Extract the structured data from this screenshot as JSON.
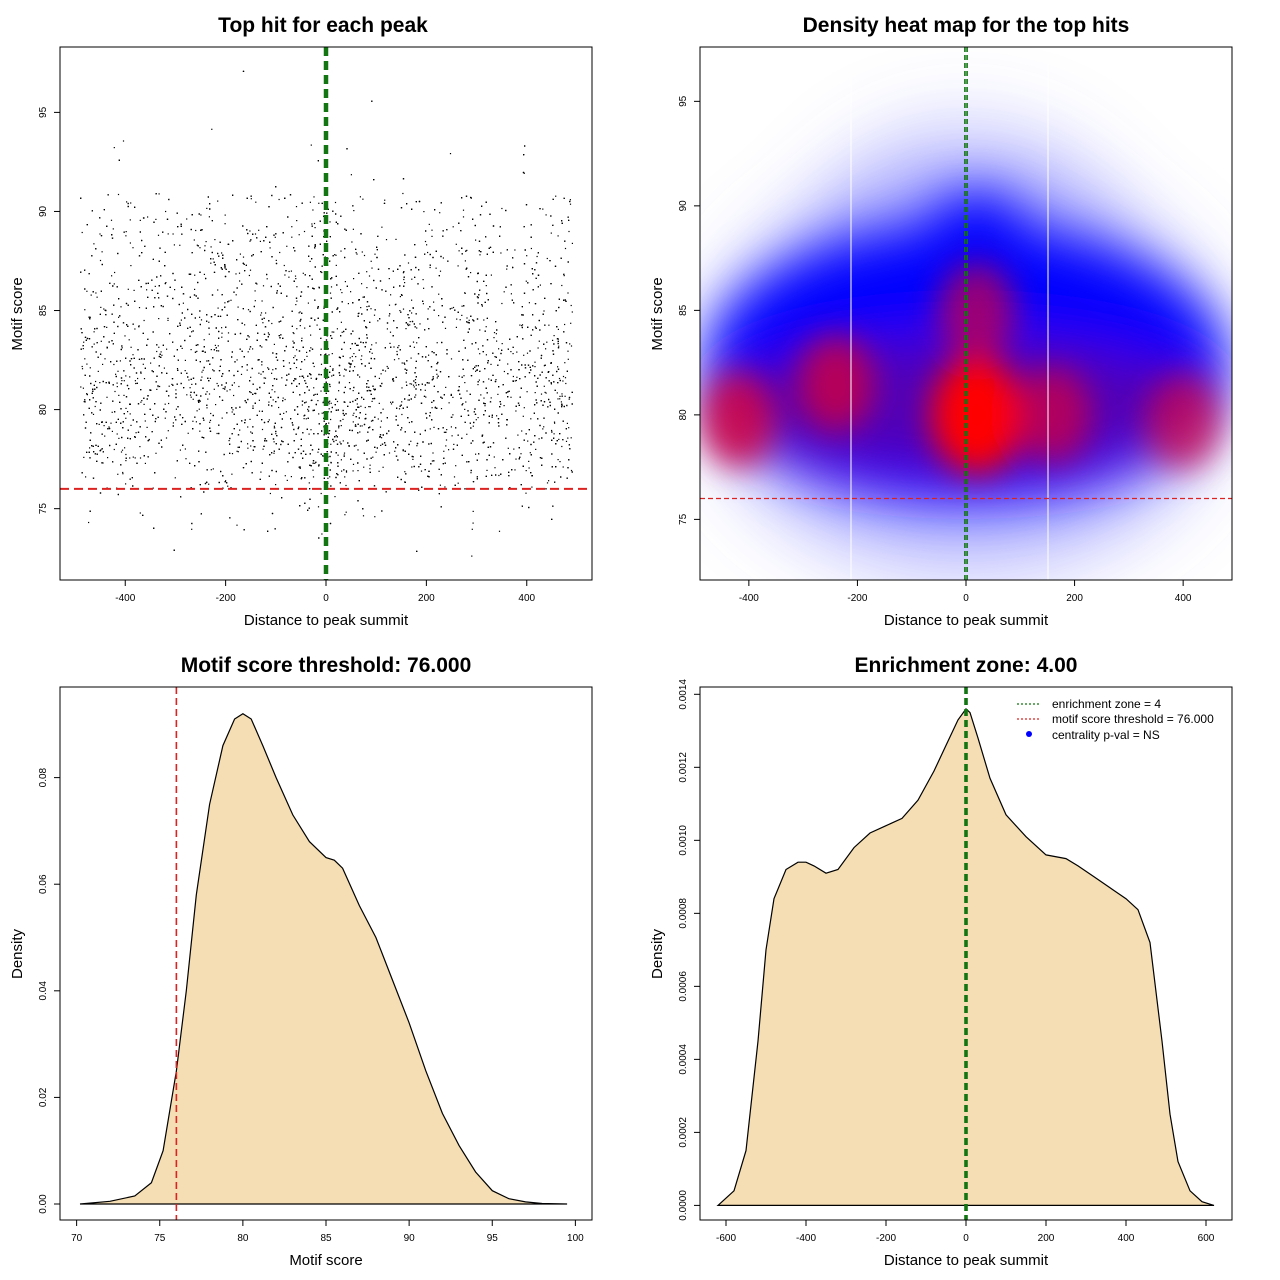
{
  "chart_data": [
    {
      "type": "scatter",
      "title": "Top hit for each peak",
      "xlabel": "Distance to peak summit",
      "ylabel": "Motif score",
      "xlim": [
        -530,
        530
      ],
      "ylim": [
        71.4,
        98.3
      ],
      "xticks": [
        -400,
        -200,
        0,
        200,
        400
      ],
      "yticks": [
        75,
        80,
        85,
        90,
        95
      ],
      "point_count_approx": 6000,
      "point_x_range": [
        -490,
        490
      ],
      "point_y_range": [
        72.2,
        97.4
      ],
      "point_y_mode": 80,
      "threshold_line": {
        "y": 76,
        "color": "#dd2222",
        "style": "dashed"
      },
      "enrichment_lines": {
        "x": [
          -2,
          2
        ],
        "color": "#127512",
        "style": "dashed"
      },
      "grid": false
    },
    {
      "type": "heatmap",
      "title": "Density heat map for the top hits",
      "xlabel": "Distance to peak summit",
      "ylabel": "Motif score",
      "xlim": [
        -490,
        490
      ],
      "ylim": [
        72.1,
        97.6
      ],
      "xticks": [
        -400,
        -200,
        0,
        200,
        400
      ],
      "yticks": [
        75,
        80,
        85,
        90,
        95
      ],
      "colors": {
        "low": "#ffffff",
        "mid": "#0000ff",
        "high": "#ff0000"
      },
      "density_peaks": [
        {
          "x": 20,
          "y": 80,
          "weight": 1.0
        },
        {
          "x": -420,
          "y": 79.8,
          "weight": 0.85
        },
        {
          "x": -240,
          "y": 81.5,
          "weight": 0.8
        },
        {
          "x": 20,
          "y": 85,
          "weight": 0.7
        },
        {
          "x": 160,
          "y": 80,
          "weight": 0.75
        },
        {
          "x": 400,
          "y": 79.7,
          "weight": 0.7
        }
      ],
      "threshold_line": {
        "y": 76,
        "color": "#dd2222",
        "style": "dashed"
      },
      "enrichment_lines": {
        "x": [
          -2,
          2
        ],
        "color": "#127512",
        "style": "dashed"
      },
      "grid": false
    },
    {
      "type": "area",
      "title": "Motif score threshold: 76.000",
      "xlabel": "Motif score",
      "ylabel": "Density",
      "xlim": [
        69,
        101
      ],
      "ylim": [
        -0.003,
        0.097
      ],
      "xticks": [
        70,
        75,
        80,
        85,
        90,
        95,
        100
      ],
      "yticks": [
        0.0,
        0.02,
        0.04,
        0.06,
        0.08
      ],
      "ytick_labels": [
        "0.00",
        "0.02",
        "0.04",
        "0.06",
        "0.08"
      ],
      "fill_color": "#f5deb3",
      "curve": {
        "x": [
          70.2,
          72,
          73.5,
          74.5,
          75.2,
          76,
          76.6,
          77.2,
          78,
          78.8,
          79.5,
          80,
          80.5,
          81.2,
          82,
          83,
          84,
          85,
          85.5,
          86,
          87,
          88,
          89,
          90,
          91,
          92,
          93,
          94,
          95,
          96,
          97,
          98,
          99.5
        ],
        "y": [
          0,
          0.0005,
          0.0015,
          0.004,
          0.01,
          0.025,
          0.04,
          0.058,
          0.075,
          0.086,
          0.091,
          0.092,
          0.091,
          0.086,
          0.08,
          0.073,
          0.068,
          0.065,
          0.0645,
          0.063,
          0.056,
          0.05,
          0.042,
          0.034,
          0.025,
          0.017,
          0.011,
          0.006,
          0.0025,
          0.001,
          0.0004,
          0.0001,
          0
        ]
      },
      "threshold_line": {
        "x": 76,
        "color": "#dd2222",
        "style": "dashed"
      },
      "grid": false
    },
    {
      "type": "area",
      "title": "Enrichment zone: 4.00",
      "xlabel": "Distance to peak summit",
      "ylabel": "Density",
      "xlim": [
        -665,
        665
      ],
      "ylim": [
        -4e-05,
        0.00142
      ],
      "xticks": [
        -600,
        -400,
        -200,
        0,
        200,
        400,
        600
      ],
      "yticks": [
        0,
        0.0002,
        0.0004,
        0.0006,
        0.0008,
        0.001,
        0.0012,
        0.0014
      ],
      "ytick_labels": [
        "0.0000",
        "0.0002",
        "0.0004",
        "0.0006",
        "0.0008",
        "0.0010",
        "0.0012",
        "0.0014"
      ],
      "fill_color": "#f5deb3",
      "curve": {
        "x": [
          -620,
          -580,
          -550,
          -520,
          -500,
          -480,
          -450,
          -420,
          -400,
          -380,
          -350,
          -320,
          -280,
          -240,
          -200,
          -160,
          -120,
          -80,
          -50,
          -20,
          0,
          10,
          30,
          60,
          100,
          150,
          200,
          250,
          280,
          320,
          360,
          400,
          430,
          460,
          490,
          510,
          530,
          560,
          590,
          620
        ],
        "y": [
          0,
          4e-05,
          0.00015,
          0.00045,
          0.0007,
          0.00084,
          0.00092,
          0.00094,
          0.00094,
          0.00093,
          0.00091,
          0.00092,
          0.00098,
          0.00102,
          0.00104,
          0.00106,
          0.00111,
          0.00119,
          0.00126,
          0.00133,
          0.00136,
          0.00135,
          0.00128,
          0.00117,
          0.00107,
          0.00101,
          0.00096,
          0.00095,
          0.00093,
          0.0009,
          0.00087,
          0.00084,
          0.00081,
          0.00072,
          0.00045,
          0.00025,
          0.00012,
          4e-05,
          1e-05,
          0
        ]
      },
      "enrichment_lines": {
        "x": [
          -2,
          2
        ],
        "color": "#127512",
        "style": "dashed"
      },
      "legend": {
        "placement": "top-right",
        "entries": [
          {
            "label": "enrichment zone = 4",
            "color": "#127512",
            "style": "dotted-line"
          },
          {
            "label": "motif score threshold = 76.000",
            "color": "#dd2222",
            "style": "dotted-line"
          },
          {
            "label": "centrality p-val = NS",
            "color": "#0000ff",
            "style": "point"
          }
        ]
      },
      "grid": false
    }
  ]
}
